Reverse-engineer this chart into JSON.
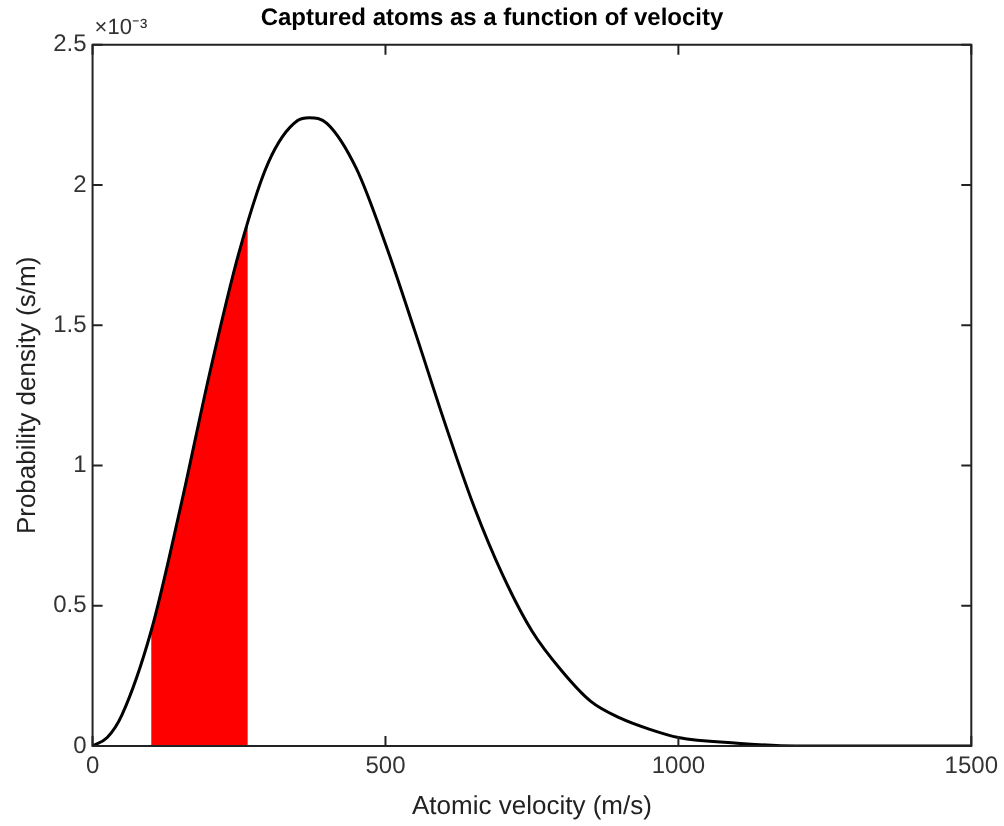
{
  "chart_data": {
    "type": "line",
    "title": "Captured atoms as a function of velocity",
    "xlabel": "Atomic velocity (m/s)",
    "ylabel": "Probability density (s/m)",
    "annotations": [
      "×10⁻³"
    ],
    "series": [
      {
        "type": "area",
        "color": "#ff0000",
        "x": [
          100,
          150,
          200,
          250,
          265
        ],
        "values": [
          0.41,
          0.85,
          1.33,
          1.76,
          1.87
        ]
      },
      {
        "color": "#000000",
        "x": [
          0,
          25,
          50,
          100,
          150,
          200,
          250,
          300,
          350,
          370,
          400,
          450,
          500,
          550,
          600,
          650,
          700,
          750,
          800,
          850,
          900,
          950,
          1000,
          1100,
          1200,
          1300,
          1400,
          1500
        ],
        "values": [
          0,
          0.03,
          0.11,
          0.41,
          0.85,
          1.33,
          1.76,
          2.08,
          2.23,
          2.24,
          2.22,
          2.06,
          1.79,
          1.48,
          1.16,
          0.86,
          0.61,
          0.41,
          0.27,
          0.16,
          0.1,
          0.06,
          0.03,
          0.01,
          0,
          0,
          0,
          0
        ]
      }
    ],
    "xlim": [
      0,
      1500
    ],
    "xticks": [
      0,
      500,
      1000,
      1500
    ],
    "ylim": [
      0,
      2.5
    ],
    "yticks": [
      0,
      0.5,
      1,
      1.5,
      2,
      2.5
    ],
    "grid": false,
    "legend": false
  }
}
